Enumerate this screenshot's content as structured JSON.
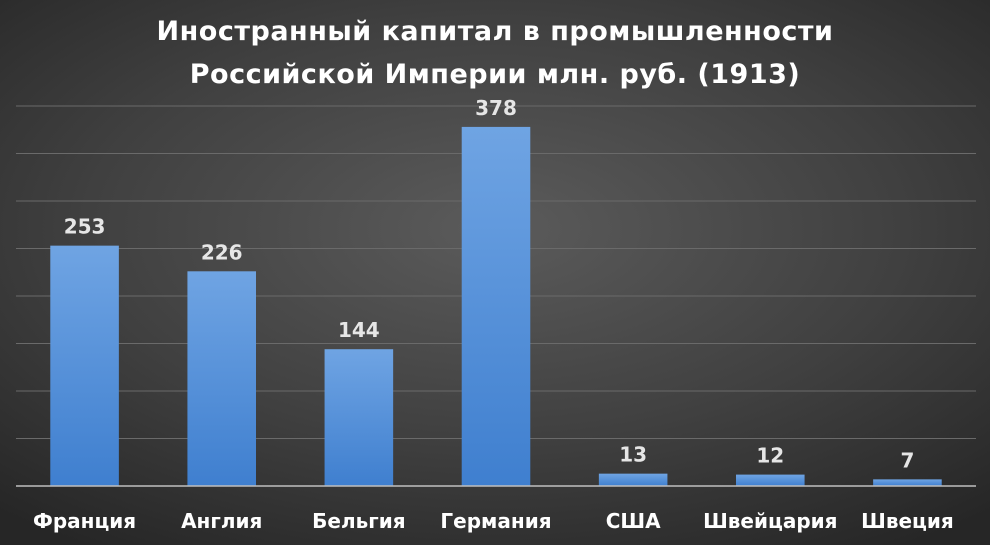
{
  "chart_data": {
    "type": "bar",
    "title_lines": [
      "Иностранный капитал в промышленности",
      "Российской Империи млн. руб. (1913)"
    ],
    "categories": [
      "Франция",
      "Англия",
      "Бельгия",
      "Германия",
      "США",
      "Швейцария",
      "Швеция"
    ],
    "values": [
      253,
      226,
      144,
      378,
      13,
      12,
      7
    ],
    "data_labels": [
      "253",
      "226",
      "144",
      "378",
      "13",
      "12",
      "7"
    ],
    "ylim": [
      0,
      400
    ],
    "ytick_step": 50,
    "y_tick_labels_visible": false,
    "grid": true,
    "legend": "none",
    "colors": {
      "bar_top": "#6fa4e3",
      "bar_bottom": "#3f7fcf",
      "background": "#404040",
      "grid": "#6a6a6a",
      "text": "#ffffff"
    }
  }
}
